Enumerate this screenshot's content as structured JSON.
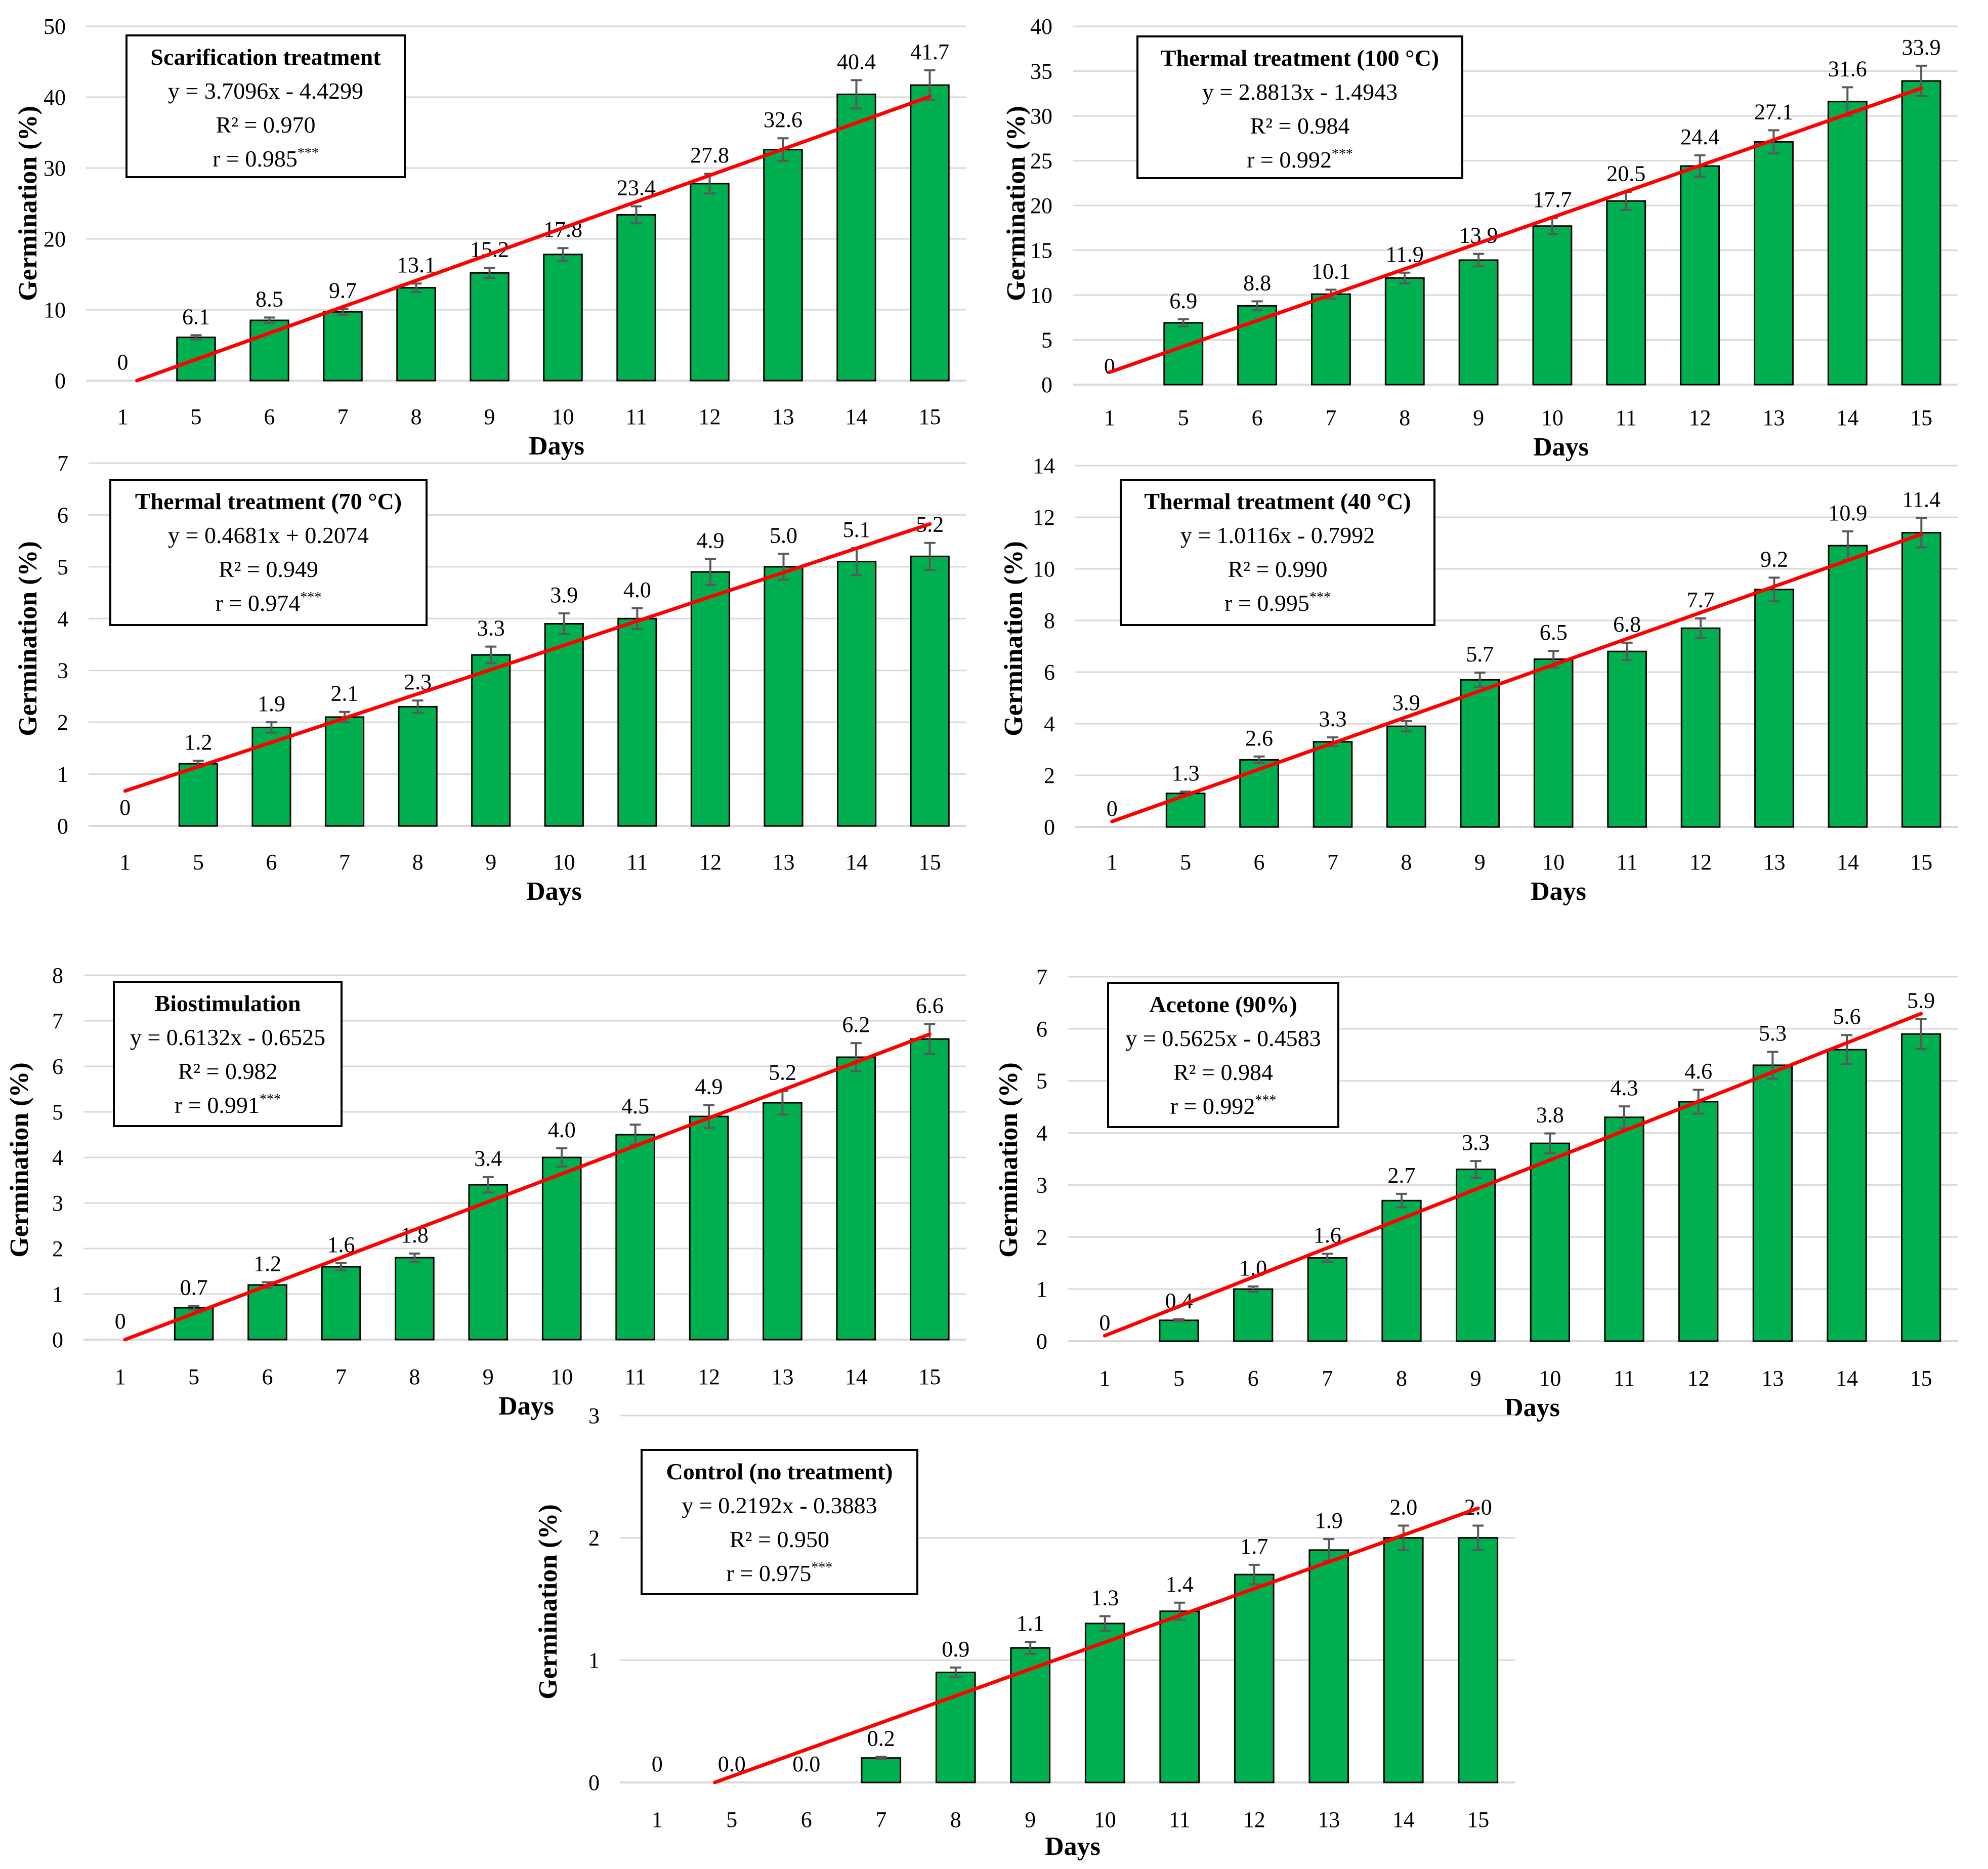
{
  "colors": {
    "bar": "#00b050",
    "trendline": "#ff0000",
    "error_bar": "#595959",
    "gridline": "#d9d9d9"
  },
  "chart_data": [
    {
      "type": "bar",
      "title": "Scarification treatment",
      "equation": "y = 3.7096x - 4.4299",
      "r_squared": "R² = 0.970",
      "r_value": "r = 0.985",
      "significance": "***",
      "xlabel": "Days",
      "ylabel": "Germination (%)",
      "categories": [
        "1",
        "5",
        "6",
        "7",
        "8",
        "9",
        "10",
        "11",
        "12",
        "13",
        "14",
        "15"
      ],
      "values": [
        0,
        6.1,
        8.5,
        9.7,
        13.1,
        15.2,
        17.8,
        23.4,
        27.8,
        32.6,
        40.4,
        41.7
      ],
      "value_labels": [
        "0",
        "6.1",
        "8.5",
        "9.7",
        "13.1",
        "15.2",
        "17.8",
        "23.4",
        "27.8",
        "32.6",
        "40.4",
        "41.7"
      ],
      "errors": [
        0,
        0.3,
        0.4,
        0.4,
        0.6,
        0.7,
        0.9,
        1.2,
        1.4,
        1.6,
        2.0,
        2.1
      ],
      "trend": {
        "slope": 3.7096,
        "intercept": -4.4299
      },
      "ylim": [
        0,
        50
      ],
      "yticks": [
        "0",
        "10",
        "20",
        "30",
        "40",
        "50"
      ]
    },
    {
      "type": "bar",
      "title": "Thermal treatment (100 °C)",
      "equation": "y = 2.8813x - 1.4943",
      "r_squared": "R² = 0.984",
      "r_value": "r = 0.992",
      "significance": "***",
      "xlabel": "Days",
      "ylabel": "Germination (%)",
      "categories": [
        "1",
        "5",
        "6",
        "7",
        "8",
        "9",
        "10",
        "11",
        "12",
        "13",
        "14",
        "15"
      ],
      "values": [
        0,
        6.9,
        8.8,
        10.1,
        11.9,
        13.9,
        17.7,
        20.5,
        24.4,
        27.1,
        31.6,
        33.9
      ],
      "value_labels": [
        "0",
        "6.9",
        "8.8",
        "10.1",
        "11.9",
        "13.9",
        "17.7",
        "20.5",
        "24.4",
        "27.1",
        "31.6",
        "33.9"
      ],
      "errors": [
        0,
        0.4,
        0.5,
        0.5,
        0.6,
        0.7,
        0.9,
        1.0,
        1.2,
        1.3,
        1.6,
        1.7
      ],
      "trend": {
        "slope": 2.8813,
        "intercept": -1.4943
      },
      "ylim": [
        0,
        40
      ],
      "yticks": [
        "0",
        "5",
        "10",
        "15",
        "20",
        "25",
        "30",
        "35",
        "40"
      ]
    },
    {
      "type": "bar",
      "title": "Thermal treatment (70 °C)",
      "equation": "y = 0.4681x + 0.2074",
      "r_squared": "R² = 0.949",
      "r_value": "r = 0.974",
      "significance": "***",
      "xlabel": "Days",
      "ylabel": "Germination (%)",
      "categories": [
        "1",
        "5",
        "6",
        "7",
        "8",
        "9",
        "10",
        "11",
        "12",
        "13",
        "14",
        "15"
      ],
      "values": [
        0,
        1.2,
        1.9,
        2.1,
        2.3,
        3.3,
        3.9,
        4.0,
        4.9,
        5.0,
        5.1,
        5.2
      ],
      "value_labels": [
        "0",
        "1.2",
        "1.9",
        "2.1",
        "2.3",
        "3.3",
        "3.9",
        "4.0",
        "4.9",
        "5.0",
        "5.1",
        "5.2"
      ],
      "errors": [
        0,
        0.06,
        0.1,
        0.1,
        0.12,
        0.16,
        0.2,
        0.2,
        0.25,
        0.25,
        0.26,
        0.26
      ],
      "trend": {
        "slope": 0.4681,
        "intercept": 0.2074
      },
      "ylim": [
        0,
        7
      ],
      "yticks": [
        "0",
        "1",
        "2",
        "3",
        "4",
        "5",
        "6",
        "7"
      ]
    },
    {
      "type": "bar",
      "title": "Thermal treatment (40 °C)",
      "equation": "y = 1.0116x - 0.7992",
      "r_squared": "R² = 0.990",
      "r_value": "r = 0.995",
      "significance": "***",
      "xlabel": "Days",
      "ylabel": "Germination (%)",
      "categories": [
        "1",
        "5",
        "6",
        "7",
        "8",
        "9",
        "10",
        "11",
        "12",
        "13",
        "14",
        "15"
      ],
      "values": [
        0,
        1.3,
        2.6,
        3.3,
        3.9,
        5.7,
        6.5,
        6.8,
        7.7,
        9.2,
        10.9,
        11.4
      ],
      "value_labels": [
        "0",
        "1.3",
        "2.6",
        "3.3",
        "3.9",
        "5.7",
        "6.5",
        "6.8",
        "7.7",
        "9.2",
        "10.9",
        "11.4"
      ],
      "errors": [
        0,
        0.07,
        0.13,
        0.17,
        0.2,
        0.28,
        0.32,
        0.34,
        0.38,
        0.46,
        0.55,
        0.57
      ],
      "trend": {
        "slope": 1.0116,
        "intercept": -0.7992
      },
      "ylim": [
        0,
        14
      ],
      "yticks": [
        "0",
        "2",
        "4",
        "6",
        "8",
        "10",
        "12",
        "14"
      ]
    },
    {
      "type": "bar",
      "title": "Biostimulation",
      "equation": "y = 0.6132x - 0.6525",
      "r_squared": "R² = 0.982",
      "r_value": "r = 0.991",
      "significance": "***",
      "xlabel": "Days",
      "ylabel": "Germination (%)",
      "categories": [
        "1",
        "5",
        "6",
        "7",
        "8",
        "9",
        "10",
        "11",
        "12",
        "13",
        "14",
        "15"
      ],
      "values": [
        0,
        0.7,
        1.2,
        1.6,
        1.8,
        3.4,
        4.0,
        4.5,
        4.9,
        5.2,
        6.2,
        6.6
      ],
      "value_labels": [
        "0",
        "0.7",
        "1.2",
        "1.6",
        "1.8",
        "3.4",
        "4.0",
        "4.5",
        "4.9",
        "5.2",
        "6.2",
        "6.6"
      ],
      "errors": [
        0,
        0.04,
        0.06,
        0.08,
        0.09,
        0.17,
        0.2,
        0.22,
        0.25,
        0.26,
        0.31,
        0.33
      ],
      "trend": {
        "slope": 0.6132,
        "intercept": -0.6525
      },
      "ylim": [
        0,
        8
      ],
      "yticks": [
        "0",
        "1",
        "2",
        "3",
        "4",
        "5",
        "6",
        "7",
        "8"
      ]
    },
    {
      "type": "bar",
      "title": "Acetone (90%)",
      "equation": "y = 0.5625x - 0.4583",
      "r_squared": "R² = 0.984",
      "r_value": "r = 0.992",
      "significance": "***",
      "xlabel": "Days",
      "ylabel": "Germination (%)",
      "categories": [
        "1",
        "5",
        "6",
        "7",
        "8",
        "9",
        "10",
        "11",
        "12",
        "13",
        "14",
        "15"
      ],
      "values": [
        0,
        0.4,
        1.0,
        1.6,
        2.7,
        3.3,
        3.8,
        4.3,
        4.6,
        5.3,
        5.6,
        5.9
      ],
      "value_labels": [
        "0",
        "0.4",
        "1.0",
        "1.6",
        "2.7",
        "3.3",
        "3.8",
        "4.3",
        "4.6",
        "5.3",
        "5.6",
        "5.9"
      ],
      "errors": [
        0,
        0.02,
        0.05,
        0.08,
        0.13,
        0.16,
        0.19,
        0.21,
        0.23,
        0.26,
        0.28,
        0.29
      ],
      "trend": {
        "slope": 0.5625,
        "intercept": -0.4583
      },
      "ylim": [
        0,
        7
      ],
      "yticks": [
        "0",
        "1",
        "2",
        "3",
        "4",
        "5",
        "6",
        "7"
      ]
    },
    {
      "type": "bar",
      "title": "Control (no treatment)",
      "equation": "y = 0.2192x - 0.3883",
      "r_squared": "R² = 0.950",
      "r_value": "r = 0.975",
      "significance": "***",
      "xlabel": "Days",
      "ylabel": "Germination (%)",
      "categories": [
        "1",
        "5",
        "6",
        "7",
        "8",
        "9",
        "10",
        "11",
        "12",
        "13",
        "14",
        "15"
      ],
      "values": [
        0,
        0,
        0,
        0.2,
        0.9,
        1.1,
        1.3,
        1.4,
        1.7,
        1.9,
        2.0,
        2.0
      ],
      "value_labels": [
        "0",
        "0.0",
        "0.0",
        "0.2",
        "0.9",
        "1.1",
        "1.3",
        "1.4",
        "1.7",
        "1.9",
        "2.0",
        "2.0"
      ],
      "errors": [
        0,
        0,
        0,
        0.01,
        0.04,
        0.05,
        0.06,
        0.07,
        0.08,
        0.09,
        0.1,
        0.1
      ],
      "trend": {
        "slope": 0.2192,
        "intercept": -0.3883
      },
      "ylim": [
        0,
        3
      ],
      "yticks": [
        "0",
        "1",
        "2",
        "3"
      ]
    }
  ]
}
